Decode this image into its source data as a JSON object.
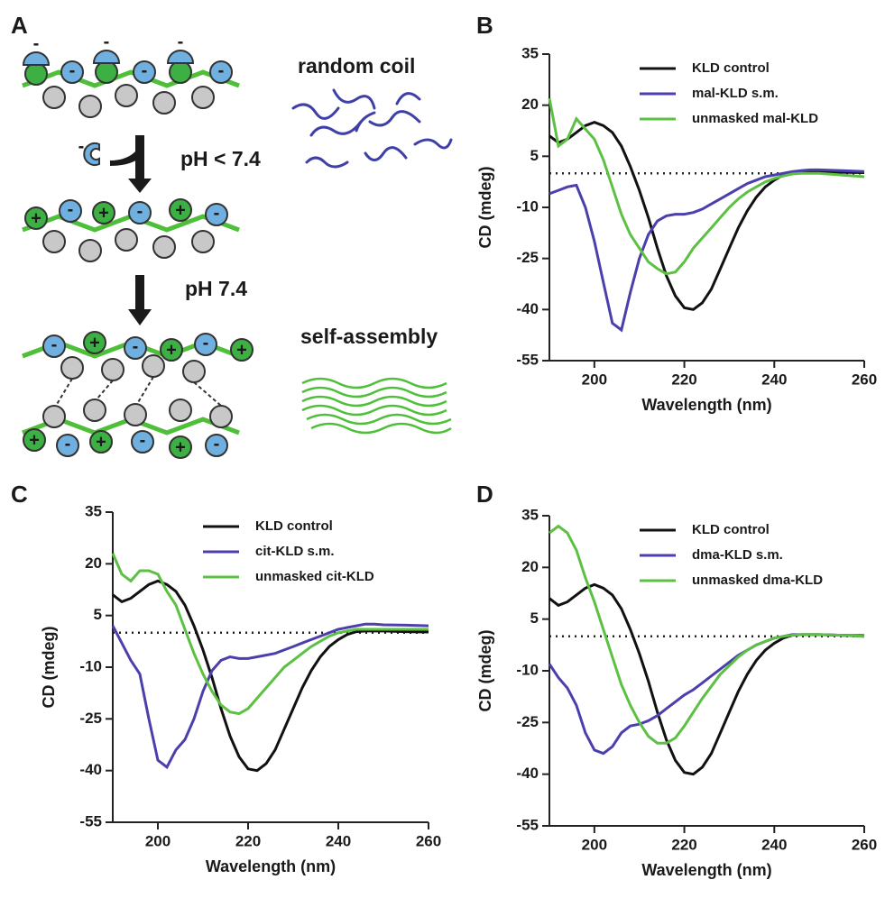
{
  "schematic": {
    "panel": "A",
    "charge_positive": "+",
    "charge_negative": "-",
    "random_coil": "random coil",
    "acid_step": "pH < 7.4",
    "neutral_step": "pH 7.4",
    "self_assembly": "self-assembly"
  },
  "chart_data": [
    {
      "type": "line",
      "panel": "B",
      "xlabel": "Wavelength (nm)",
      "ylabel": "CD (mdeg)",
      "x": [
        190,
        192,
        194,
        196,
        198,
        200,
        202,
        204,
        206,
        208,
        210,
        212,
        214,
        216,
        218,
        220,
        222,
        224,
        226,
        228,
        230,
        232,
        234,
        236,
        238,
        240,
        242,
        244,
        246,
        248,
        250,
        255,
        260
      ],
      "xlim": [
        190,
        260
      ],
      "ylim": [
        -55,
        35
      ],
      "xticks": [
        200,
        220,
        240,
        260
      ],
      "yticks": [
        -55,
        -40,
        -25,
        -10,
        5,
        20,
        35
      ],
      "reference_line": 0,
      "series": [
        {
          "name": "KLD control",
          "color": "#111111",
          "values": [
            11,
            9,
            10,
            12,
            14,
            15,
            14,
            12,
            8,
            2,
            -5,
            -13,
            -22,
            -30,
            -36,
            -39.5,
            -40,
            -38,
            -34,
            -28,
            -22,
            -16,
            -11,
            -7,
            -4,
            -2,
            -0.5,
            0.3,
            0.5,
            0.5,
            0.5,
            0.3,
            0.2
          ]
        },
        {
          "name": "mal-KLD s.m.",
          "color": "#4b3fae",
          "values": [
            -6,
            -5,
            -4,
            -3.5,
            -10,
            -20,
            -32,
            -44,
            -46,
            -35,
            -25,
            -18,
            -14,
            -12.5,
            -12,
            -12,
            -11.5,
            -10.5,
            -9,
            -7.5,
            -6,
            -4.5,
            -3,
            -2,
            -1,
            -0.5,
            0,
            0.5,
            0.8,
            1,
            1,
            0.8,
            0.5
          ]
        },
        {
          "name": "unmasked mal-KLD",
          "color": "#5cc043",
          "values": [
            22,
            8,
            10,
            16,
            13,
            10,
            4,
            -4,
            -12,
            -18,
            -22,
            -26,
            -28,
            -29.5,
            -29,
            -26,
            -22,
            -19,
            -16,
            -13,
            -10,
            -7.5,
            -5.5,
            -4,
            -2.5,
            -1.5,
            -0.8,
            -0.2,
            0,
            0,
            0,
            -0.5,
            -1
          ]
        }
      ]
    },
    {
      "type": "line",
      "panel": "C",
      "xlabel": "Wavelength (nm)",
      "ylabel": "CD (mdeg)",
      "x": [
        190,
        192,
        194,
        196,
        198,
        200,
        202,
        204,
        206,
        208,
        210,
        212,
        214,
        216,
        218,
        220,
        222,
        224,
        226,
        228,
        230,
        232,
        234,
        236,
        238,
        240,
        242,
        244,
        246,
        248,
        250,
        255,
        260
      ],
      "xlim": [
        190,
        260
      ],
      "ylim": [
        -55,
        35
      ],
      "xticks": [
        200,
        220,
        240,
        260
      ],
      "yticks": [
        -55,
        -40,
        -25,
        -10,
        5,
        20,
        35
      ],
      "reference_line": 0,
      "series": [
        {
          "name": "KLD control",
          "color": "#111111",
          "values": [
            11,
            9,
            10,
            12,
            14,
            15,
            14,
            12,
            8,
            2,
            -5,
            -13,
            -22,
            -30,
            -36,
            -39.5,
            -40,
            -38,
            -34,
            -28,
            -22,
            -16,
            -11,
            -7,
            -4,
            -2,
            -0.5,
            0.3,
            0.5,
            0.5,
            0.5,
            0.3,
            0.2
          ]
        },
        {
          "name": "cit-KLD s.m.",
          "color": "#4b3fae",
          "values": [
            2,
            -3,
            -8,
            -12,
            -25,
            -37,
            -39,
            -34,
            -31,
            -25,
            -17,
            -11,
            -8,
            -7,
            -7.5,
            -7.5,
            -7,
            -6.5,
            -6,
            -5,
            -4,
            -3,
            -2,
            -1,
            0,
            1,
            1.5,
            2,
            2.5,
            2.5,
            2.3,
            2.2,
            2
          ]
        },
        {
          "name": "unmasked cit-KLD",
          "color": "#5cc043",
          "values": [
            23,
            17,
            15,
            18,
            18,
            17,
            12,
            8,
            1,
            -6,
            -12,
            -17,
            -21,
            -23,
            -23.5,
            -22,
            -19,
            -16,
            -13,
            -10,
            -8,
            -6,
            -4,
            -2.5,
            -1,
            0,
            0.5,
            1,
            1,
            1,
            1,
            1,
            1
          ]
        }
      ]
    },
    {
      "type": "line",
      "panel": "D",
      "xlabel": "Wavelength (nm)",
      "ylabel": "CD (mdeg)",
      "x": [
        190,
        192,
        194,
        196,
        198,
        200,
        202,
        204,
        206,
        208,
        210,
        212,
        214,
        216,
        218,
        220,
        222,
        224,
        226,
        228,
        230,
        232,
        234,
        236,
        238,
        240,
        242,
        244,
        246,
        248,
        250,
        255,
        260
      ],
      "xlim": [
        190,
        260
      ],
      "ylim": [
        -55,
        35
      ],
      "xticks": [
        200,
        220,
        240,
        260
      ],
      "yticks": [
        -55,
        -40,
        -25,
        -10,
        5,
        20,
        35
      ],
      "reference_line": 0,
      "series": [
        {
          "name": "KLD control",
          "color": "#111111",
          "values": [
            11,
            9,
            10,
            12,
            14,
            15,
            14,
            12,
            8,
            2,
            -5,
            -13,
            -22,
            -30,
            -36,
            -39.5,
            -40,
            -38,
            -34,
            -28,
            -22,
            -16,
            -11,
            -7,
            -4,
            -2,
            -0.5,
            0.3,
            0.5,
            0.5,
            0.5,
            0.3,
            0.2
          ]
        },
        {
          "name": "dma-KLD s.m.",
          "color": "#4b3fae",
          "values": [
            -8,
            -12,
            -15,
            -20,
            -28,
            -33,
            -34,
            -32,
            -28,
            -26,
            -25.5,
            -24.5,
            -23,
            -21,
            -19,
            -17,
            -15.5,
            -13.5,
            -11.5,
            -9.5,
            -7.5,
            -5.5,
            -4,
            -2.5,
            -1.5,
            -0.5,
            0,
            0.5,
            0.5,
            0.5,
            0.5,
            0.3,
            0
          ]
        },
        {
          "name": "unmasked dma-KLD",
          "color": "#5cc043",
          "values": [
            30,
            32,
            30,
            25,
            17,
            10,
            2,
            -6,
            -14,
            -20,
            -25,
            -29,
            -31,
            -31,
            -29.5,
            -26,
            -22,
            -18,
            -14.5,
            -11,
            -8.5,
            -6,
            -4,
            -2.5,
            -1.5,
            -0.5,
            0,
            0.3,
            0.5,
            0.5,
            0.5,
            0.3,
            0
          ]
        }
      ]
    }
  ]
}
